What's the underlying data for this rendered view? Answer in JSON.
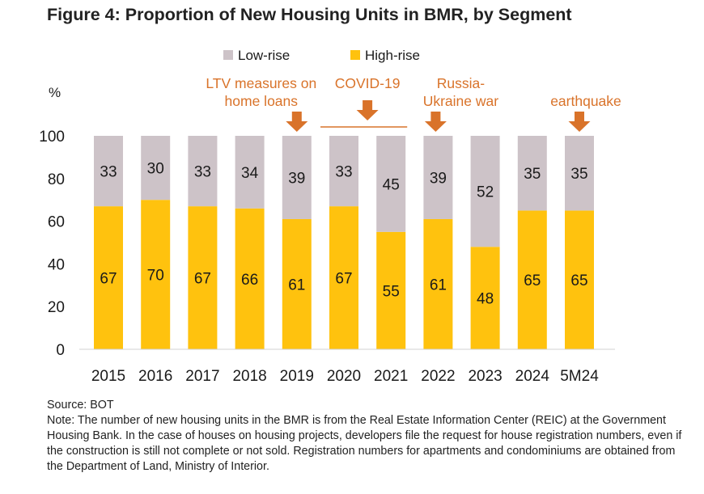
{
  "title": "Figure 4: Proportion of New Housing Units in BMR, by Segment",
  "footer": {
    "source": "Source: BOT",
    "note": "Note: The number of new housing units in the BMR is from the Real Estate Information Center (REIC) at the Government Housing Bank. In the case of houses on housing projects, developers file the request for house registration numbers, even if the construction is still not complete or not sold. Registration numbers for apartments and condominiums are obtained from the Department of Land, Ministry of Interior."
  },
  "chart_data": {
    "type": "bar",
    "stacked": true,
    "ylabel": "%",
    "ylim": [
      0,
      100
    ],
    "yticks": [
      0,
      20,
      40,
      60,
      80,
      100
    ],
    "grid": false,
    "legend_position": "top",
    "categories": [
      "2015",
      "2016",
      "2017",
      "2018",
      "2019",
      "2020",
      "2021",
      "2022",
      "2023",
      "2024",
      "5M24"
    ],
    "series": [
      {
        "name": "High-rise",
        "color": "#FFC20E",
        "values": [
          67,
          70,
          67,
          66,
          61,
          67,
          55,
          61,
          48,
          65,
          65
        ]
      },
      {
        "name": "Low-rise",
        "color": "#CDC3C8",
        "values": [
          33,
          30,
          33,
          34,
          39,
          33,
          45,
          39,
          52,
          35,
          35
        ]
      }
    ],
    "legend_order": [
      "Low-rise",
      "High-rise"
    ],
    "annotations": [
      {
        "lines": [
          "LTV measures on",
          "home loans"
        ],
        "category": "2019",
        "arrow": true
      },
      {
        "lines": [
          "COVID-19"
        ],
        "category_span": [
          "2020",
          "2021"
        ],
        "arrow": true
      },
      {
        "lines": [
          "Russia-",
          "Ukraine war"
        ],
        "category": "2022",
        "arrow": true
      },
      {
        "lines": [
          "earthquake"
        ],
        "category": "5M24",
        "arrow": true
      }
    ],
    "annotation_color": "#D9732A"
  }
}
